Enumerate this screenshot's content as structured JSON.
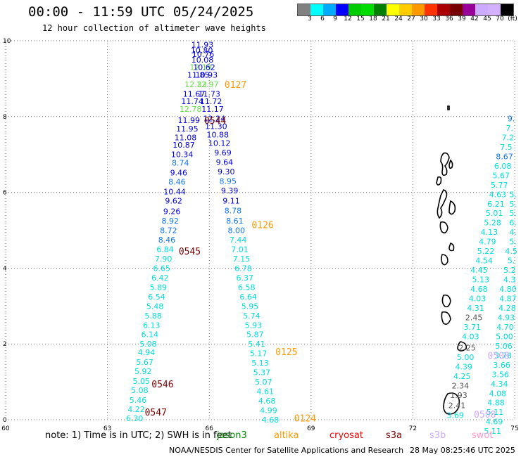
{
  "header": {
    "title": "00:00 - 11:59 UTC 05/24/2025",
    "subtitle": "12 hour collection of altimeter wave heights"
  },
  "legend": {
    "colors": [
      "#808080",
      "#00ffff",
      "#00aaff",
      "#0000ff",
      "#00cc00",
      "#00dd00",
      "#008000",
      "#ffff00",
      "#ffcc00",
      "#ff9900",
      "#ff3300",
      "#aa0000",
      "#770000",
      "#990099",
      "#ccaaff",
      "#d4b0ff",
      "#000000"
    ],
    "labels": [
      "3",
      "6",
      "9",
      "12",
      "15",
      "18",
      "21",
      "24",
      "27",
      "30",
      "33",
      "36",
      "39",
      "42",
      "45",
      "70",
      "(ft)"
    ]
  },
  "axes": {
    "x_ticks": [
      "60",
      "63",
      "66",
      "69",
      "72",
      "75"
    ],
    "y_ticks": [
      "0",
      "2",
      "4",
      "6",
      "8",
      "10"
    ]
  },
  "map": {
    "color_scale": {
      "band3": "#33bbdd",
      "band6": "#00dddd",
      "band9": "#1177ee",
      "band12": "#0000dd",
      "band15": "#66dd44",
      "band_low": "#555555"
    },
    "track_labels": [
      {
        "text": "0127",
        "lon": 66.45,
        "lat": 8.85,
        "color": "#ff9900"
      },
      {
        "text": "0544",
        "lon": 65.85,
        "lat": 7.9,
        "color": "#770000"
      },
      {
        "text": "0126",
        "lon": 67.25,
        "lat": 5.15,
        "color": "#ff9900"
      },
      {
        "text": "0545",
        "lon": 65.1,
        "lat": 4.45,
        "color": "#770000"
      },
      {
        "text": "0125",
        "lon": 67.95,
        "lat": 1.8,
        "color": "#ff9900"
      },
      {
        "text": "0546",
        "lon": 64.3,
        "lat": 0.95,
        "color": "#770000"
      },
      {
        "text": "0547",
        "lon": 64.1,
        "lat": 0.2,
        "color": "#770000"
      },
      {
        "text": "0124",
        "lon": 68.5,
        "lat": 0.05,
        "color": "#ff9900"
      },
      {
        "text": "0508",
        "lon": 74.2,
        "lat": 1.7,
        "color": "#ccaaff"
      },
      {
        "text": "0508",
        "lon": 73.8,
        "lat": 0.15,
        "color": "#ccaaff"
      }
    ],
    "track_a": [
      {
        "v": "11.93",
        "lon": 65.8,
        "lat": 9.9,
        "c": "band12"
      },
      {
        "v": "10.80",
        "lon": 65.78,
        "lat": 9.75,
        "c": "band12"
      },
      {
        "v": "10.76",
        "lon": 65.82,
        "lat": 9.65,
        "c": "band12"
      },
      {
        "v": "10.08",
        "lon": 65.8,
        "lat": 9.5,
        "c": "band12"
      },
      {
        "v": "12.19",
        "lon": 65.75,
        "lat": 9.3,
        "c": "band15"
      },
      {
        "v": "10.62",
        "lon": 65.85,
        "lat": 9.3,
        "c": "band12"
      },
      {
        "v": "11.85",
        "lon": 65.68,
        "lat": 9.1,
        "c": "band12"
      },
      {
        "v": "10.93",
        "lon": 65.92,
        "lat": 9.1,
        "c": "band12"
      },
      {
        "v": "12.33",
        "lon": 65.6,
        "lat": 8.85,
        "c": "band15"
      },
      {
        "v": "12.97",
        "lon": 65.95,
        "lat": 8.85,
        "c": "band15"
      },
      {
        "v": "11.67",
        "lon": 65.55,
        "lat": 8.6,
        "c": "band12"
      },
      {
        "v": "11.73",
        "lon": 66.0,
        "lat": 8.6,
        "c": "band12"
      },
      {
        "v": "11.74",
        "lon": 65.5,
        "lat": 8.4,
        "c": "band12"
      },
      {
        "v": "11.72",
        "lon": 66.05,
        "lat": 8.4,
        "c": "band12"
      },
      {
        "v": "12.78",
        "lon": 65.45,
        "lat": 8.2,
        "c": "band15"
      },
      {
        "v": "11.17",
        "lon": 66.1,
        "lat": 8.2,
        "c": "band12"
      },
      {
        "v": "11.99",
        "lon": 65.4,
        "lat": 7.9,
        "c": "band12"
      },
      {
        "v": "12.24",
        "lon": 66.15,
        "lat": 7.95,
        "c": "band12"
      },
      {
        "v": "11.95",
        "lon": 65.35,
        "lat": 7.68,
        "c": "band12"
      },
      {
        "v": "11.30",
        "lon": 66.2,
        "lat": 7.75,
        "c": "band12"
      },
      {
        "v": "11.08",
        "lon": 65.3,
        "lat": 7.45,
        "c": "band12"
      },
      {
        "v": "10.88",
        "lon": 66.25,
        "lat": 7.52,
        "c": "band12"
      },
      {
        "v": "10.87",
        "lon": 65.25,
        "lat": 7.25,
        "c": "band12"
      },
      {
        "v": "10.12",
        "lon": 66.3,
        "lat": 7.3,
        "c": "band12"
      },
      {
        "v": "10.34",
        "lon": 65.2,
        "lat": 7.0,
        "c": "band12"
      },
      {
        "v": "9.69",
        "lon": 66.4,
        "lat": 7.05,
        "c": "band12"
      },
      {
        "v": "8.74",
        "lon": 65.15,
        "lat": 6.78,
        "c": "band9"
      },
      {
        "v": "9.64",
        "lon": 66.45,
        "lat": 6.8,
        "c": "band12"
      },
      {
        "v": "9.46",
        "lon": 65.1,
        "lat": 6.52,
        "c": "band12"
      },
      {
        "v": "9.30",
        "lon": 66.5,
        "lat": 6.55,
        "c": "band12"
      },
      {
        "v": "8.46",
        "lon": 65.05,
        "lat": 6.28,
        "c": "band9"
      },
      {
        "v": "8.95",
        "lon": 66.55,
        "lat": 6.3,
        "c": "band9"
      },
      {
        "v": "10.44",
        "lon": 64.98,
        "lat": 6.02,
        "c": "band12"
      },
      {
        "v": "9.39",
        "lon": 66.6,
        "lat": 6.05,
        "c": "band12"
      },
      {
        "v": "9.62",
        "lon": 64.95,
        "lat": 5.78,
        "c": "band12"
      },
      {
        "v": "9.11",
        "lon": 66.65,
        "lat": 5.78,
        "c": "band12"
      },
      {
        "v": "9.26",
        "lon": 64.9,
        "lat": 5.5,
        "c": "band12"
      },
      {
        "v": "8.78",
        "lon": 66.7,
        "lat": 5.52,
        "c": "band9"
      },
      {
        "v": "8.92",
        "lon": 64.85,
        "lat": 5.25,
        "c": "band9"
      },
      {
        "v": "8.61",
        "lon": 66.75,
        "lat": 5.25,
        "c": "band9"
      },
      {
        "v": "8.72",
        "lon": 64.8,
        "lat": 5.0,
        "c": "band9"
      },
      {
        "v": "8.00",
        "lon": 66.8,
        "lat": 5.0,
        "c": "band9"
      },
      {
        "v": "8.46",
        "lon": 64.75,
        "lat": 4.75,
        "c": "band9"
      },
      {
        "v": "7.44",
        "lon": 66.85,
        "lat": 4.75,
        "c": "band6"
      },
      {
        "v": "6.84",
        "lon": 64.7,
        "lat": 4.5,
        "c": "band6"
      },
      {
        "v": "7.01",
        "lon": 66.9,
        "lat": 4.5,
        "c": "band6"
      },
      {
        "v": "7.90",
        "lon": 64.65,
        "lat": 4.25,
        "c": "band6"
      },
      {
        "v": "7.15",
        "lon": 66.95,
        "lat": 4.25,
        "c": "band6"
      },
      {
        "v": "6.65",
        "lon": 64.6,
        "lat": 4.0,
        "c": "band6"
      },
      {
        "v": "6.78",
        "lon": 67.0,
        "lat": 4.0,
        "c": "band6"
      },
      {
        "v": "6.42",
        "lon": 64.55,
        "lat": 3.75,
        "c": "band6"
      },
      {
        "v": "6.37",
        "lon": 67.05,
        "lat": 3.75,
        "c": "band6"
      },
      {
        "v": "5.89",
        "lon": 64.5,
        "lat": 3.5,
        "c": "band6"
      },
      {
        "v": "6.58",
        "lon": 67.1,
        "lat": 3.5,
        "c": "band6"
      },
      {
        "v": "6.54",
        "lon": 64.45,
        "lat": 3.25,
        "c": "band6"
      },
      {
        "v": "6.64",
        "lon": 67.15,
        "lat": 3.25,
        "c": "band6"
      },
      {
        "v": "5.48",
        "lon": 64.4,
        "lat": 3.0,
        "c": "band6"
      },
      {
        "v": "5.95",
        "lon": 67.2,
        "lat": 3.0,
        "c": "band6"
      },
      {
        "v": "5.88",
        "lon": 64.35,
        "lat": 2.75,
        "c": "band6"
      },
      {
        "v": "5.74",
        "lon": 67.25,
        "lat": 2.75,
        "c": "band6"
      },
      {
        "v": "6.13",
        "lon": 64.3,
        "lat": 2.5,
        "c": "band6"
      },
      {
        "v": "5.93",
        "lon": 67.3,
        "lat": 2.5,
        "c": "band6"
      },
      {
        "v": "6.14",
        "lon": 64.25,
        "lat": 2.25,
        "c": "band6"
      },
      {
        "v": "5.87",
        "lon": 67.35,
        "lat": 2.25,
        "c": "band6"
      },
      {
        "v": "5.08",
        "lon": 64.2,
        "lat": 2.0,
        "c": "band6"
      },
      {
        "v": "5.41",
        "lon": 67.4,
        "lat": 2.0,
        "c": "band6"
      },
      {
        "v": "4.94",
        "lon": 64.15,
        "lat": 1.78,
        "c": "band6"
      },
      {
        "v": "5.17",
        "lon": 67.45,
        "lat": 1.75,
        "c": "band6"
      },
      {
        "v": "5.67",
        "lon": 64.1,
        "lat": 1.52,
        "c": "band6"
      },
      {
        "v": "5.13",
        "lon": 67.5,
        "lat": 1.5,
        "c": "band6"
      },
      {
        "v": "5.92",
        "lon": 64.05,
        "lat": 1.28,
        "c": "band6"
      },
      {
        "v": "5.37",
        "lon": 67.55,
        "lat": 1.25,
        "c": "band6"
      },
      {
        "v": "5.05",
        "lon": 64.0,
        "lat": 1.02,
        "c": "band6"
      },
      {
        "v": "5.07",
        "lon": 67.6,
        "lat": 1.0,
        "c": "band6"
      },
      {
        "v": "5.08",
        "lon": 63.95,
        "lat": 0.78,
        "c": "band6"
      },
      {
        "v": "4.61",
        "lon": 67.65,
        "lat": 0.75,
        "c": "band6"
      },
      {
        "v": "5.46",
        "lon": 63.9,
        "lat": 0.52,
        "c": "band6"
      },
      {
        "v": "4.68",
        "lon": 67.7,
        "lat": 0.5,
        "c": "band6"
      },
      {
        "v": "4.22",
        "lon": 63.85,
        "lat": 0.28,
        "c": "band6"
      },
      {
        "v": "4.99",
        "lon": 67.75,
        "lat": 0.25,
        "c": "band6"
      },
      {
        "v": "6.30",
        "lon": 63.8,
        "lat": 0.04,
        "c": "band6"
      },
      {
        "v": "4.68",
        "lon": 67.8,
        "lat": 0.0,
        "c": "band6"
      }
    ],
    "track_b": [
      {
        "v": "9.",
        "lon": 74.9,
        "lat": 7.95,
        "c": "band9"
      },
      {
        "v": "7.",
        "lon": 74.85,
        "lat": 7.7,
        "c": "band6"
      },
      {
        "v": "7.2",
        "lon": 74.8,
        "lat": 7.45,
        "c": "band6"
      },
      {
        "v": "7.5",
        "lon": 74.75,
        "lat": 7.2,
        "c": "band6"
      },
      {
        "v": "8.67",
        "lon": 74.7,
        "lat": 6.95,
        "c": "band9"
      },
      {
        "v": "6.08",
        "lon": 74.65,
        "lat": 6.7,
        "c": "band6"
      },
      {
        "v": "5.67",
        "lon": 74.6,
        "lat": 6.45,
        "c": "band6"
      },
      {
        "v": "5.77",
        "lon": 74.55,
        "lat": 6.2,
        "c": "band6"
      },
      {
        "v": "4.63",
        "lon": 74.5,
        "lat": 5.95,
        "c": "band6"
      },
      {
        "v": "6.21",
        "lon": 74.45,
        "lat": 5.7,
        "c": "band6"
      },
      {
        "v": "5.01",
        "lon": 74.4,
        "lat": 5.45,
        "c": "band6"
      },
      {
        "v": "5.28",
        "lon": 74.35,
        "lat": 5.2,
        "c": "band6"
      },
      {
        "v": "4.13",
        "lon": 74.25,
        "lat": 4.95,
        "c": "band6"
      },
      {
        "v": "4.79",
        "lon": 74.2,
        "lat": 4.7,
        "c": "band6"
      },
      {
        "v": "5.22",
        "lon": 74.15,
        "lat": 4.45,
        "c": "band6"
      },
      {
        "v": "4.54",
        "lon": 74.1,
        "lat": 4.2,
        "c": "band6"
      },
      {
        "v": "4.45",
        "lon": 73.95,
        "lat": 3.95,
        "c": "band6"
      },
      {
        "v": "5.13",
        "lon": 74.0,
        "lat": 3.7,
        "c": "band6"
      },
      {
        "v": "4.68",
        "lon": 73.95,
        "lat": 3.45,
        "c": "band6"
      },
      {
        "v": "4.03",
        "lon": 73.9,
        "lat": 3.2,
        "c": "band6"
      },
      {
        "v": "4.31",
        "lon": 73.85,
        "lat": 2.95,
        "c": "band6"
      },
      {
        "v": "2.45",
        "lon": 73.8,
        "lat": 2.7,
        "c": "band_low"
      },
      {
        "v": "3.71",
        "lon": 73.75,
        "lat": 2.45,
        "c": "band6"
      },
      {
        "v": "4.03",
        "lon": 73.7,
        "lat": 2.2,
        "c": "band6"
      },
      {
        "v": "2.25",
        "lon": 73.6,
        "lat": 1.9,
        "c": "band_low"
      },
      {
        "v": "5.00",
        "lon": 73.55,
        "lat": 1.65,
        "c": "band6"
      },
      {
        "v": "4.39",
        "lon": 73.5,
        "lat": 1.4,
        "c": "band6"
      },
      {
        "v": "4.25",
        "lon": 73.45,
        "lat": 1.15,
        "c": "band6"
      },
      {
        "v": "2.34",
        "lon": 73.4,
        "lat": 0.9,
        "c": "band_low"
      },
      {
        "v": "1.93",
        "lon": 73.35,
        "lat": 0.65,
        "c": "band_low"
      },
      {
        "v": "2.41",
        "lon": 73.3,
        "lat": 0.38,
        "c": "band_low"
      },
      {
        "v": "3.69",
        "lon": 73.25,
        "lat": 0.12,
        "c": "band6"
      }
    ],
    "track_c": [
      {
        "v": "5.",
        "lon": 74.95,
        "lat": 5.95,
        "c": "band6"
      },
      {
        "v": "5.",
        "lon": 74.95,
        "lat": 5.7,
        "c": "band6"
      },
      {
        "v": "5.",
        "lon": 74.95,
        "lat": 5.45,
        "c": "band6"
      },
      {
        "v": "6.",
        "lon": 74.95,
        "lat": 5.2,
        "c": "band6"
      },
      {
        "v": "4.",
        "lon": 74.95,
        "lat": 4.95,
        "c": "band6"
      },
      {
        "v": "5.",
        "lon": 74.95,
        "lat": 4.7,
        "c": "band6"
      },
      {
        "v": "4.5",
        "lon": 74.9,
        "lat": 4.45,
        "c": "band6"
      },
      {
        "v": "5.",
        "lon": 74.9,
        "lat": 4.2,
        "c": "band6"
      },
      {
        "v": "5.2",
        "lon": 74.85,
        "lat": 3.95,
        "c": "band6"
      },
      {
        "v": "4.3",
        "lon": 74.85,
        "lat": 3.7,
        "c": "band6"
      },
      {
        "v": "4.80",
        "lon": 74.8,
        "lat": 3.45,
        "c": "band6"
      },
      {
        "v": "4.87",
        "lon": 74.8,
        "lat": 3.2,
        "c": "band6"
      },
      {
        "v": "4.28",
        "lon": 74.78,
        "lat": 2.95,
        "c": "band6"
      },
      {
        "v": "4.93",
        "lon": 74.75,
        "lat": 2.7,
        "c": "band6"
      },
      {
        "v": "4.70",
        "lon": 74.72,
        "lat": 2.45,
        "c": "band6"
      },
      {
        "v": "5.00",
        "lon": 74.7,
        "lat": 2.2,
        "c": "band6"
      },
      {
        "v": "5.06",
        "lon": 74.68,
        "lat": 1.95,
        "c": "band6"
      },
      {
        "v": "3.78",
        "lon": 74.66,
        "lat": 1.7,
        "c": "band6"
      },
      {
        "v": "3.66",
        "lon": 74.62,
        "lat": 1.45,
        "c": "band6"
      },
      {
        "v": "3.56",
        "lon": 74.58,
        "lat": 1.2,
        "c": "band6"
      },
      {
        "v": "4.34",
        "lon": 74.55,
        "lat": 0.95,
        "c": "band6"
      },
      {
        "v": "4.08",
        "lon": 74.5,
        "lat": 0.7,
        "c": "band6"
      },
      {
        "v": "4.88",
        "lon": 74.45,
        "lat": 0.45,
        "c": "band6"
      },
      {
        "v": "5.11",
        "lon": 74.42,
        "lat": 0.2,
        "c": "band6"
      },
      {
        "v": "4.69",
        "lon": 74.4,
        "lat": -0.05,
        "c": "band6"
      },
      {
        "v": "5.11",
        "lon": 74.35,
        "lat": -0.3,
        "c": "band6"
      }
    ]
  },
  "footer": {
    "note": "note: 1) Time is in UTC; 2) SWH is in feet",
    "missions": [
      {
        "name": "jason3",
        "color": "#008800"
      },
      {
        "name": "altika",
        "color": "#ff9900"
      },
      {
        "name": "cryosat",
        "color": "#ee0000"
      },
      {
        "name": "s3a",
        "color": "#770000"
      },
      {
        "name": "s3b",
        "color": "#ccaaff"
      },
      {
        "name": "swot",
        "color": "#ff99cc"
      }
    ],
    "credit": "NOAA/NESDIS Center for Satellite Applications and Research",
    "timestamp": "28 May 08:25:46 UTC 2025"
  }
}
